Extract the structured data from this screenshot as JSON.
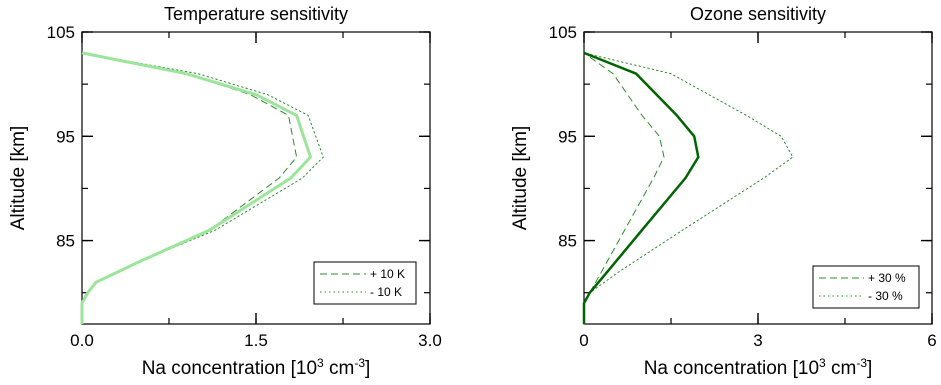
{
  "chart_data": [
    {
      "type": "line",
      "title": "Temperature sensitivity",
      "xlabel_main": "Na concentration [10",
      "xlabel_sup1": "3",
      "xlabel_mid": " cm",
      "xlabel_sup2": "-3",
      "xlabel_end": "]",
      "ylabel": "Altitude [km]",
      "xlim": [
        0,
        3
      ],
      "ylim": [
        77,
        105
      ],
      "xticks": [
        {
          "value": 0,
          "label": "0.0"
        },
        {
          "value": 1.5,
          "label": "1.5"
        },
        {
          "value": 3,
          "label": "3.0"
        }
      ],
      "yticks": [
        {
          "value": 85,
          "label": "85"
        },
        {
          "value": 95,
          "label": "95"
        },
        {
          "value": 105,
          "label": "105"
        }
      ],
      "legend_position": "bottom-right",
      "series": [
        {
          "key": "base",
          "color": "#9be59b",
          "style": "solid",
          "width": 3,
          "x": [
            0,
            0,
            0.05,
            0.12,
            0.5,
            1.1,
            1.8,
            1.97,
            1.85,
            1.5,
            0.9,
            0
          ],
          "y": [
            77,
            79,
            80,
            81,
            83,
            86,
            91,
            93,
            97,
            99,
            101,
            103
          ]
        },
        {
          "key": "plus",
          "name": "+ 10 K",
          "color": "#2e8b2e",
          "style": "dashed",
          "width": 1,
          "x": [
            0,
            0,
            0.05,
            0.12,
            0.5,
            1.1,
            1.7,
            1.85,
            1.78,
            1.45,
            0.9,
            0
          ],
          "y": [
            77,
            79,
            80,
            81,
            83,
            86,
            91,
            93,
            97,
            99,
            101,
            103
          ]
        },
        {
          "key": "minus",
          "name": "- 10 K",
          "color": "#2e8b2e",
          "style": "dotted",
          "width": 1,
          "x": [
            0,
            0,
            0.05,
            0.12,
            0.5,
            1.15,
            1.9,
            2.08,
            1.95,
            1.6,
            1.0,
            0
          ],
          "y": [
            77,
            79,
            80,
            81,
            83,
            86,
            91,
            93,
            97,
            99,
            101,
            103
          ]
        }
      ]
    },
    {
      "type": "line",
      "title": "Ozone sensitivity",
      "xlabel_main": "Na concentration [10",
      "xlabel_sup1": "3",
      "xlabel_mid": " cm",
      "xlabel_sup2": "-3",
      "xlabel_end": "]",
      "ylabel": "Altitude [km]",
      "xlim": [
        0,
        6
      ],
      "ylim": [
        77,
        105
      ],
      "xticks": [
        {
          "value": 0,
          "label": "0"
        },
        {
          "value": 3,
          "label": "3"
        },
        {
          "value": 6,
          "label": "6"
        }
      ],
      "yticks": [
        {
          "value": 85,
          "label": "85"
        },
        {
          "value": 95,
          "label": "95"
        },
        {
          "value": 105,
          "label": "105"
        }
      ],
      "legend_position": "bottom-right",
      "series": [
        {
          "key": "base",
          "color": "#006400",
          "style": "solid",
          "width": 2.5,
          "x": [
            0,
            0,
            0.1,
            0.4,
            1.0,
            1.75,
            1.97,
            1.9,
            1.6,
            0.9,
            0
          ],
          "y": [
            77,
            79,
            80,
            82,
            86,
            91,
            93,
            95,
            97,
            101,
            103
          ]
        },
        {
          "key": "plus",
          "name": "+ 30 %",
          "color": "#2e8b2e",
          "style": "dashed",
          "width": 1,
          "x": [
            0,
            0,
            0.1,
            0.3,
            0.7,
            1.2,
            1.38,
            1.3,
            1.0,
            0.5,
            0
          ],
          "y": [
            77,
            79,
            80,
            82,
            86,
            91,
            93,
            95,
            97,
            101,
            103
          ]
        },
        {
          "key": "minus",
          "name": "- 30 %",
          "color": "#2e8b2e",
          "style": "dotted",
          "width": 1,
          "x": [
            0,
            0,
            0.1,
            0.6,
            1.7,
            3.1,
            3.6,
            3.4,
            2.8,
            1.5,
            0
          ],
          "y": [
            77,
            79,
            80,
            82,
            86,
            91,
            93,
            95,
            97,
            101,
            103
          ]
        }
      ]
    }
  ]
}
